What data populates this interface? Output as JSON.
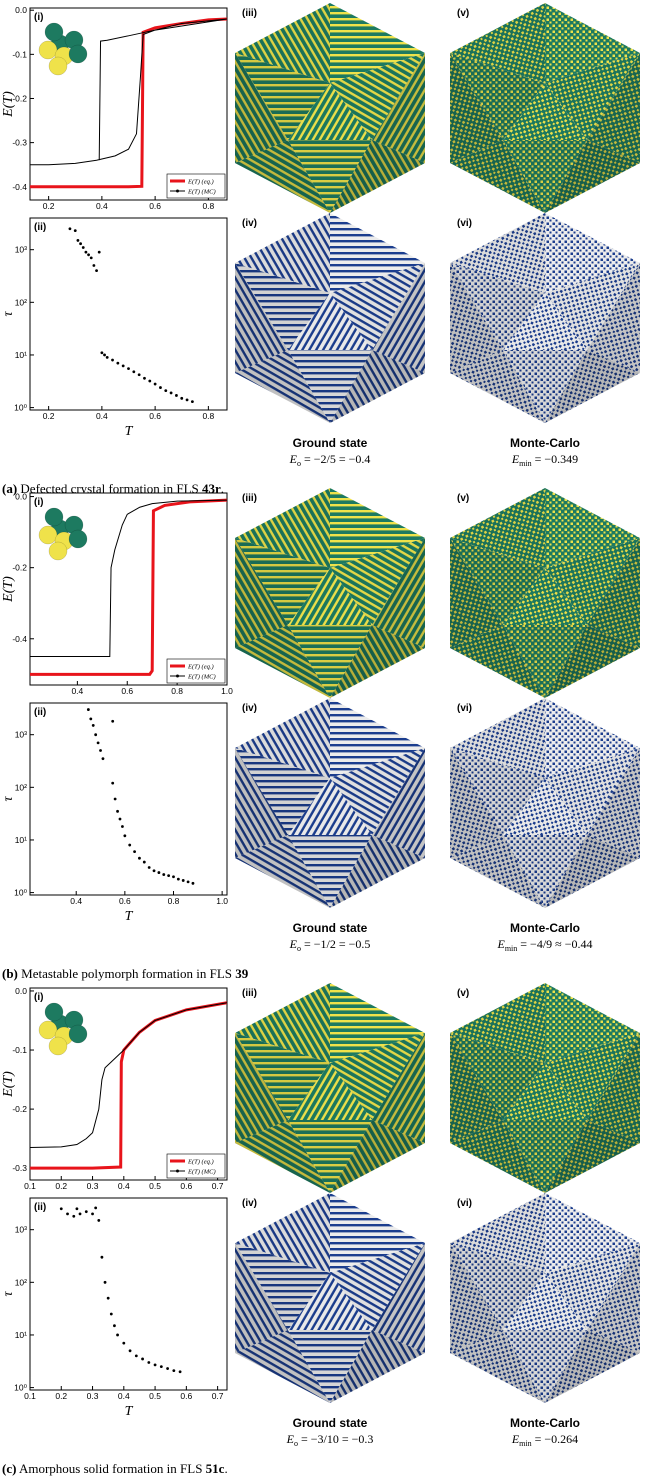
{
  "chart_data": [
    {
      "type": "line",
      "panel_label": "(i)",
      "ylabel": "E(T)",
      "xlim": [
        0.13,
        0.87
      ],
      "ylim": [
        -0.43,
        0.005
      ],
      "xticks": [
        0.2,
        0.4,
        0.6,
        0.8
      ],
      "yticks": [
        {
          "value": 0,
          "label": "0.0"
        },
        -0.1,
        -0.2,
        -0.3,
        -0.4
      ],
      "legend": "lower right",
      "series": [
        {
          "name": "E(T) (eq.)",
          "color": "#e8141b",
          "x": [
            0.13,
            0.3,
            0.5,
            0.55,
            0.555,
            0.6,
            0.7,
            0.8,
            0.87
          ],
          "values": [
            -0.4,
            -0.4,
            -0.4,
            -0.399,
            -0.05,
            -0.04,
            -0.03,
            -0.022,
            -0.02
          ]
        },
        {
          "name": "E(T) (MC)",
          "color": "#000000",
          "x": [
            0.13,
            0.2,
            0.3,
            0.38,
            0.45,
            0.5,
            0.53,
            0.545,
            0.555,
            0.6,
            0.7,
            0.87,
            0.6,
            0.5,
            0.42,
            0.395,
            0.39
          ],
          "values": [
            -0.35,
            -0.35,
            -0.347,
            -0.34,
            -0.33,
            -0.315,
            -0.28,
            -0.15,
            -0.055,
            -0.045,
            -0.03,
            -0.02,
            -0.045,
            -0.058,
            -0.068,
            -0.07,
            -0.34
          ]
        }
      ]
    },
    {
      "type": "scatter",
      "panel_label": "(ii)",
      "ylabel": "τ",
      "xlabel": "T",
      "log_y": true,
      "color": "#000000",
      "xlim": [
        0.13,
        0.87
      ],
      "ylim": [
        0.9,
        4000
      ],
      "xticks": [
        0.2,
        0.4,
        0.6,
        0.8
      ],
      "yticks": [
        {
          "value": 1,
          "label": "10⁰"
        },
        {
          "value": 10,
          "label": "10¹"
        },
        {
          "value": 100,
          "label": "10²"
        },
        {
          "value": 1000,
          "label": "10³"
        }
      ],
      "x": [
        0.28,
        0.3,
        0.31,
        0.32,
        0.33,
        0.34,
        0.35,
        0.36,
        0.37,
        0.38,
        0.39,
        0.4,
        0.41,
        0.42,
        0.44,
        0.46,
        0.48,
        0.5,
        0.52,
        0.54,
        0.56,
        0.58,
        0.6,
        0.62,
        0.64,
        0.66,
        0.68,
        0.7,
        0.72,
        0.74
      ],
      "values": [
        2500,
        2300,
        1500,
        1300,
        1100,
        900,
        800,
        700,
        500,
        400,
        900,
        11,
        10,
        9,
        8,
        7,
        6.2,
        5.5,
        4.8,
        4.2,
        3.6,
        3.2,
        2.8,
        2.4,
        2.1,
        1.9,
        1.7,
        1.5,
        1.4,
        1.3
      ]
    },
    {
      "type": "line",
      "panel_label": "(i)",
      "ylabel": "E(T)",
      "xlim": [
        0.21,
        1.0
      ],
      "ylim": [
        -0.53,
        0.01
      ],
      "xticks": [
        0.4,
        0.6,
        0.8,
        {
          "value": 1,
          "label": "1.0"
        }
      ],
      "yticks": [
        {
          "value": 0,
          "label": "0.0"
        },
        -0.2,
        -0.4
      ],
      "legend": "lower right",
      "series": [
        {
          "name": "E(T) (eq.)",
          "color": "#e8141b",
          "x": [
            0.21,
            0.5,
            0.69,
            0.7,
            0.705,
            0.75,
            0.85,
            1.0
          ],
          "values": [
            -0.5,
            -0.5,
            -0.5,
            -0.49,
            -0.04,
            -0.025,
            -0.015,
            -0.01
          ]
        },
        {
          "name": "E(T) (MC)",
          "color": "#000000",
          "x": [
            0.21,
            0.4,
            0.53,
            0.535,
            0.55,
            0.58,
            0.6,
            0.65,
            0.7,
            0.8,
            1.0
          ],
          "values": [
            -0.45,
            -0.45,
            -0.45,
            -0.2,
            -0.15,
            -0.08,
            -0.05,
            -0.03,
            -0.02,
            -0.013,
            -0.01
          ]
        }
      ]
    },
    {
      "type": "scatter",
      "panel_label": "(ii)",
      "ylabel": "τ",
      "xlabel": "T",
      "log_y": true,
      "color": "#000000",
      "xlim": [
        0.21,
        1.02
      ],
      "ylim": [
        0.9,
        4000
      ],
      "xticks": [
        0.4,
        0.6,
        0.8,
        {
          "value": 1,
          "label": "1.0"
        }
      ],
      "yticks": [
        {
          "value": 1,
          "label": "10⁰"
        },
        {
          "value": 10,
          "label": "10¹"
        },
        {
          "value": 100,
          "label": "10²"
        },
        {
          "value": 1000,
          "label": "10³"
        }
      ],
      "x": [
        0.45,
        0.46,
        0.47,
        0.48,
        0.49,
        0.5,
        0.51,
        0.55,
        0.55,
        0.56,
        0.57,
        0.58,
        0.59,
        0.6,
        0.62,
        0.64,
        0.66,
        0.68,
        0.7,
        0.72,
        0.74,
        0.76,
        0.78,
        0.8,
        0.82,
        0.84,
        0.86,
        0.88
      ],
      "values": [
        3000,
        2000,
        1500,
        1000,
        700,
        500,
        350,
        1800,
        120,
        60,
        35,
        25,
        18,
        12,
        8,
        6,
        4.5,
        3.8,
        3,
        2.6,
        2.4,
        2.2,
        2.1,
        2,
        1.8,
        1.7,
        1.6,
        1.5
      ]
    },
    {
      "type": "line",
      "panel_label": "(i)",
      "ylabel": "E(T)",
      "xlim": [
        0.1,
        0.73
      ],
      "ylim": [
        -0.32,
        0.005
      ],
      "xticks": [
        0.1,
        0.2,
        0.3,
        0.4,
        0.5,
        0.6,
        0.7
      ],
      "yticks": [
        {
          "value": 0,
          "label": "0.0"
        },
        -0.1,
        -0.2,
        -0.3
      ],
      "legend": "lower right",
      "series": [
        {
          "name": "E(T) (eq.)",
          "color": "#e8141b",
          "x": [
            0.1,
            0.3,
            0.39,
            0.392,
            0.4,
            0.45,
            0.5,
            0.6,
            0.73
          ],
          "values": [
            -0.3,
            -0.3,
            -0.298,
            -0.12,
            -0.1,
            -0.07,
            -0.05,
            -0.032,
            -0.02
          ]
        },
        {
          "name": "E(T) (MC)",
          "color": "#000000",
          "x": [
            0.1,
            0.2,
            0.25,
            0.28,
            0.3,
            0.32,
            0.33,
            0.34,
            0.36,
            0.4,
            0.45,
            0.5,
            0.6,
            0.73
          ],
          "values": [
            -0.265,
            -0.264,
            -0.26,
            -0.25,
            -0.24,
            -0.2,
            -0.15,
            -0.13,
            -0.12,
            -0.1,
            -0.07,
            -0.05,
            -0.032,
            -0.02
          ]
        }
      ]
    },
    {
      "type": "scatter",
      "panel_label": "(ii)",
      "ylabel": "τ",
      "xlabel": "T",
      "log_y": true,
      "color": "#000000",
      "xlim": [
        0.1,
        0.73
      ],
      "ylim": [
        0.9,
        4000
      ],
      "xticks": [
        0.1,
        0.2,
        0.3,
        0.4,
        0.5,
        0.6,
        0.7
      ],
      "yticks": [
        {
          "value": 1,
          "label": "10⁰"
        },
        {
          "value": 10,
          "label": "10¹"
        },
        {
          "value": 100,
          "label": "10²"
        },
        {
          "value": 1000,
          "label": "10³"
        }
      ],
      "x": [
        0.2,
        0.22,
        0.24,
        0.25,
        0.26,
        0.28,
        0.3,
        0.31,
        0.32,
        0.33,
        0.34,
        0.35,
        0.36,
        0.37,
        0.38,
        0.4,
        0.42,
        0.44,
        0.46,
        0.48,
        0.5,
        0.52,
        0.54,
        0.56,
        0.58
      ],
      "values": [
        2500,
        2000,
        1800,
        2500,
        2000,
        2200,
        2000,
        2600,
        1500,
        300,
        100,
        50,
        25,
        15,
        10,
        7,
        5,
        4,
        3.5,
        3,
        2.7,
        2.5,
        2.3,
        2.1,
        2
      ]
    }
  ],
  "panels": [
    {
      "images": [
        "(iii)",
        "(iv)",
        "(v)",
        "(vi)"
      ],
      "ground_state": {
        "title": "Ground state",
        "symbol": "E",
        "subscript": "o",
        "expression": " = −2/5 = −0.4"
      },
      "monte_carlo": {
        "title": "Monte-Carlo",
        "symbol": "E",
        "subscript": "min",
        "expression": " = −0.349"
      },
      "caption": {
        "label": "(a)",
        "text": " Defected crystal formation in FLS ",
        "bold": "43r",
        "end": "."
      }
    },
    {
      "images": [
        "(iii)",
        "(iv)",
        "(v)",
        "(vi)"
      ],
      "ground_state": {
        "title": "Ground state",
        "symbol": "E",
        "subscript": "o",
        "expression": " = −1/2 = −0.5"
      },
      "monte_carlo": {
        "title": "Monte-Carlo",
        "symbol": "E",
        "subscript": "min",
        "expression": " = −4/9 ≈ −0.44"
      },
      "caption": {
        "label": "(b)",
        "text": " Metastable polymorph formation in FLS ",
        "bold": "39",
        "end": ""
      }
    },
    {
      "images": [
        "(iii)",
        "(iv)",
        "(v)",
        "(vi)"
      ],
      "ground_state": {
        "title": "Ground state",
        "symbol": "E",
        "subscript": "o",
        "expression": " = −3/10 = −0.3"
      },
      "monte_carlo": {
        "title": "Monte-Carlo",
        "symbol": "E",
        "subscript": "min",
        "expression": " = −0.264"
      },
      "caption": {
        "label": "(c)",
        "text": " Amorphous solid formation in FLS ",
        "bold": "51c",
        "end": "."
      }
    }
  ]
}
